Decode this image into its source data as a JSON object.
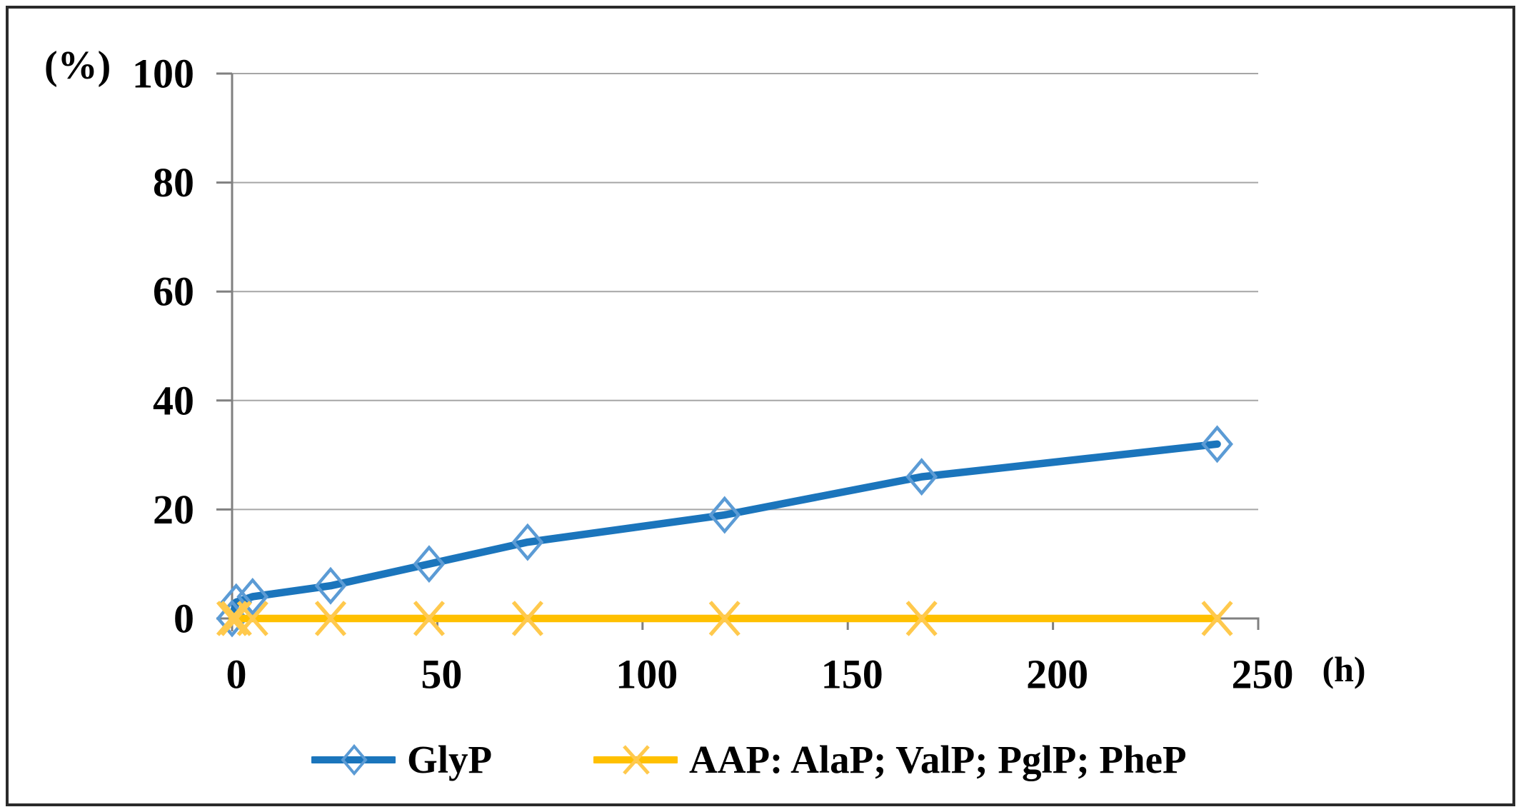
{
  "chart": {
    "y_axis_unit": "(%)",
    "x_axis_unit": "(h)"
  },
  "chart_data": {
    "type": "line",
    "title": "",
    "xlabel": "(h)",
    "ylabel": "(%)",
    "x": [
      0,
      1,
      5,
      24,
      48,
      72,
      120,
      168,
      240
    ],
    "series": [
      {
        "name": "GlyP",
        "values": [
          0,
          3,
          4,
          6,
          10,
          14,
          19,
          26,
          32
        ],
        "line_color": "#1B75BC",
        "marker": "diamond",
        "marker_color": "#5B9BD5"
      },
      {
        "name": "AAP: AlaP; ValP; PglP; PheP",
        "values": [
          0,
          0,
          0,
          0,
          0,
          0,
          0,
          0,
          0
        ],
        "line_color": "#FFC000",
        "marker": "x",
        "marker_color": "#FFC94D"
      }
    ],
    "x_ticks": [
      "0",
      "50",
      "100",
      "150",
      "200",
      "250"
    ],
    "y_ticks": [
      "0",
      "20",
      "40",
      "60",
      "80",
      "100"
    ],
    "xlim": [
      0,
      250
    ],
    "ylim": [
      0,
      100
    ],
    "grid": true,
    "legend_position": "bottom",
    "colors": {
      "gridline": "#A6A6A6",
      "axis": "#808080",
      "text": "#000000",
      "frame": "#2B2B2B"
    }
  }
}
